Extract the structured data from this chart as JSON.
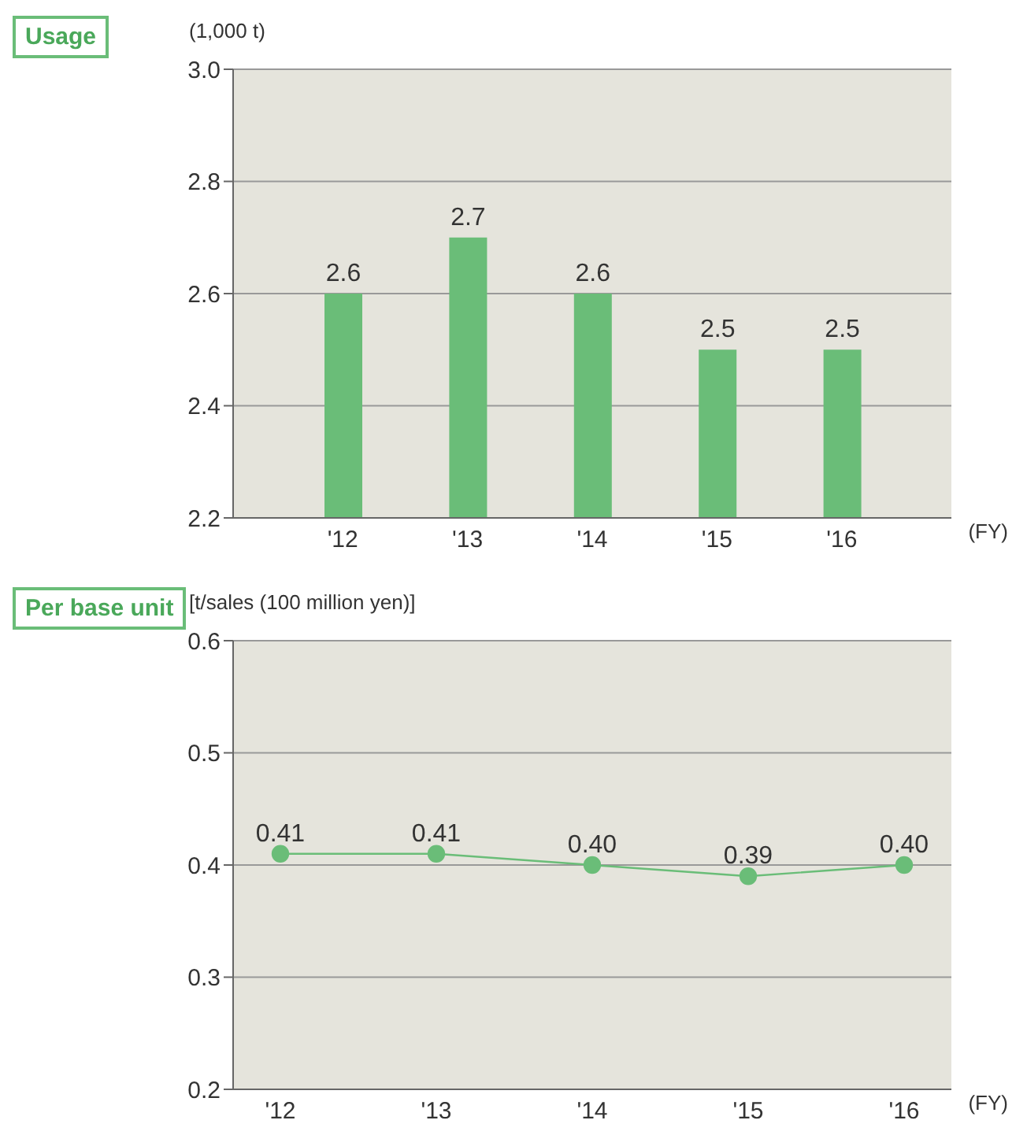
{
  "chart_data": [
    {
      "type": "bar",
      "title": "Usage",
      "ylabel": "(1,000 t)",
      "xlabel": "(FY)",
      "categories": [
        "'12",
        "'13",
        "'14",
        "'15",
        "'16"
      ],
      "values": [
        2.6,
        2.7,
        2.6,
        2.5,
        2.5
      ],
      "color": "#6abd78",
      "ylim": [
        2.2,
        3.0
      ],
      "yticks": [
        2.2,
        2.4,
        2.6,
        2.8,
        {
          "value": 3,
          "label": "3.0"
        }
      ],
      "grid": "y",
      "data_labels": true
    },
    {
      "type": "line",
      "title": "Per base unit",
      "ylabel": "[t/sales (100 million yen)]",
      "xlabel": "(FY)",
      "categories": [
        "'12",
        "'13",
        "'14",
        "'15",
        "'16"
      ],
      "values": [
        0.41,
        0.41,
        0.4,
        0.39,
        0.4
      ],
      "value_labels": [
        "0.41",
        "0.41",
        "0.40",
        "0.39",
        "0.40"
      ],
      "color": "#6abd78",
      "marker": "circle",
      "line_style": "solid",
      "ylim": [
        0.2,
        0.6
      ],
      "yticks": [
        0.2,
        0.3,
        0.4,
        0.5,
        0.6
      ],
      "grid": "y"
    }
  ]
}
